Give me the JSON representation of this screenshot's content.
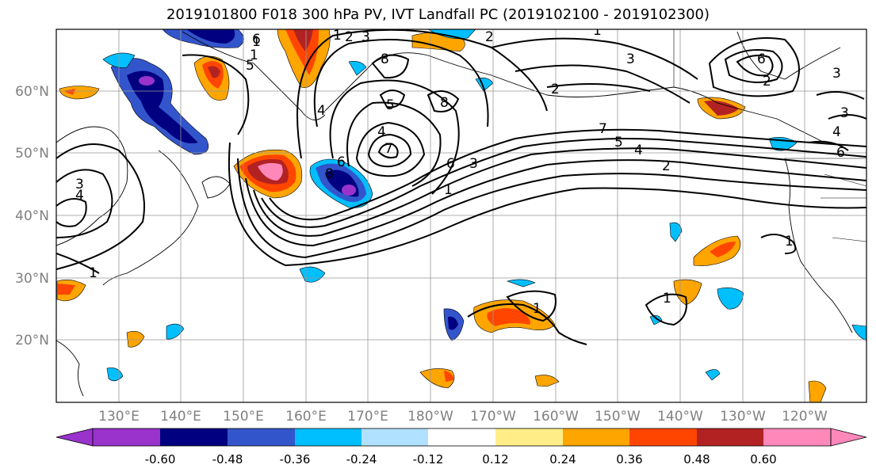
{
  "title": "2019101800 F018 300 hPa PV, IVT Landfall PC (2019102100 - 2019102300)",
  "lat_labels": [
    "60°N",
    "50°N",
    "40°N",
    "30°N",
    "20°N"
  ],
  "lon_labels": [
    "130°E",
    "140°E",
    "150°E",
    "160°E",
    "170°E",
    "180°W",
    "170°W",
    "160°W",
    "150°W",
    "140°W",
    "130°W",
    "120°W"
  ],
  "colorbar": {
    "colors": [
      "#9933cc",
      "#000080",
      "#3355cc",
      "#00bfff",
      "#b0e2ff",
      "#ffffff",
      "#ffee88",
      "#ffa500",
      "#ff4500",
      "#b22222",
      "#ff88bb"
    ],
    "tick_labels": [
      "-0.60",
      "-0.48",
      "-0.36",
      "-0.24",
      "-0.12",
      "0.12",
      "0.24",
      "0.36",
      "0.48",
      "0.60"
    ]
  },
  "contour_labels": [
    "1",
    "2",
    "3",
    "4",
    "5",
    "6",
    "7",
    "8",
    "1",
    "2",
    "3",
    "4",
    "5",
    "6",
    "7",
    "8",
    "1",
    "2",
    "3",
    "4",
    "5",
    "6",
    "7",
    "1",
    "2",
    "3",
    "4",
    "5",
    "6",
    "1",
    "1",
    "1",
    "1",
    "2",
    "3",
    "4",
    "6",
    "3",
    "4",
    "1"
  ]
}
